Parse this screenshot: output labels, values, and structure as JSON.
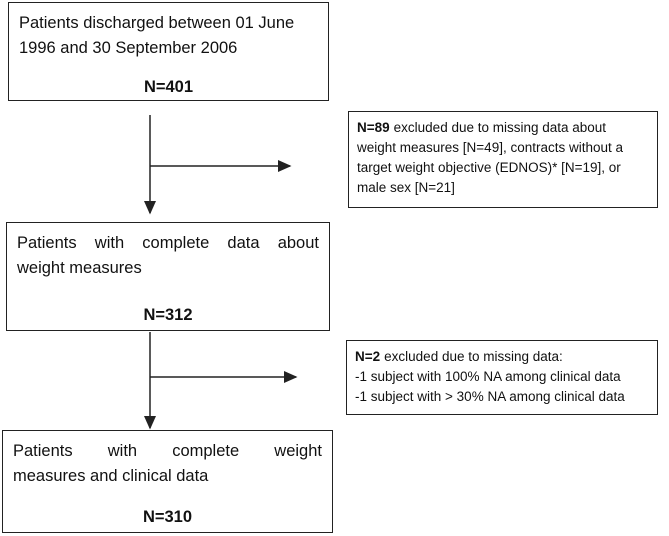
{
  "boxes": [
    {
      "lines": [
        "Patients discharged between 01 June",
        "1996 and 30 September 2006"
      ],
      "count": "N=401"
    },
    {
      "lines": [
        "Patients with complete data about",
        "weight measures"
      ],
      "count": "N=312"
    },
    {
      "lines": [
        "Patients with complete weight",
        "measures and clinical data"
      ],
      "count": "N=310"
    }
  ],
  "exclusions": [
    {
      "count": "N=89",
      "lines": [
        "excluded due to missing data about",
        "weight measures [N=49], contracts without a",
        "target weight objective (EDNOS)* [N=19], or",
        "male sex [N=21]"
      ]
    },
    {
      "count": "N=2",
      "lines": [
        "excluded due to missing data:",
        "-1 subject with 100% NA among clinical data",
        "-1 subject with > 30% NA among clinical data"
      ]
    }
  ]
}
